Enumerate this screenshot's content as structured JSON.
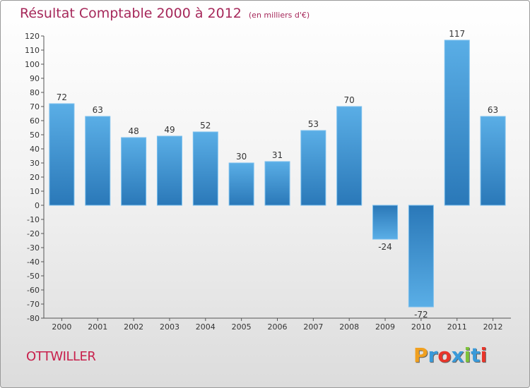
{
  "chart_data": {
    "type": "bar",
    "title": "Résultat Comptable 2000 à 2012",
    "subtitle": "(en milliers d'€)",
    "categories": [
      "2000",
      "2001",
      "2002",
      "2003",
      "2004",
      "2005",
      "2006",
      "2007",
      "2008",
      "2009",
      "2010",
      "2011",
      "2012"
    ],
    "values": [
      72,
      63,
      48,
      49,
      52,
      30,
      31,
      53,
      70,
      -24,
      -72,
      117,
      63
    ],
    "value_labels": [
      "72",
      "63",
      "48",
      "49",
      "52",
      "30",
      "31",
      "53",
      "70",
      "-24",
      "-72",
      "117",
      "63"
    ],
    "ylim": [
      -80,
      120
    ],
    "yticks": [
      "120",
      "110",
      "100",
      "90",
      "80",
      "70",
      "60",
      "50",
      "40",
      "30",
      "20",
      "10",
      "0",
      "-10",
      "-20",
      "-30",
      "-40",
      "-50",
      "-60",
      "-70",
      "-80"
    ],
    "grid": false,
    "xlabel": "",
    "ylabel": ""
  },
  "commune": "OTTWILLER",
  "logo": {
    "letters": [
      "P",
      "r",
      "o",
      "x",
      "i",
      "t",
      "i"
    ],
    "colors": [
      "#f0a020",
      "#3a9ad9",
      "#e8352a",
      "#3a9ad9",
      "#7dc23a",
      "#3a9ad9",
      "#e8352a"
    ]
  },
  "colors": {
    "bar_dark": "#2a78b8",
    "bar_light": "#5aaee6",
    "title": "#a6285a",
    "commune": "#c8204c"
  }
}
